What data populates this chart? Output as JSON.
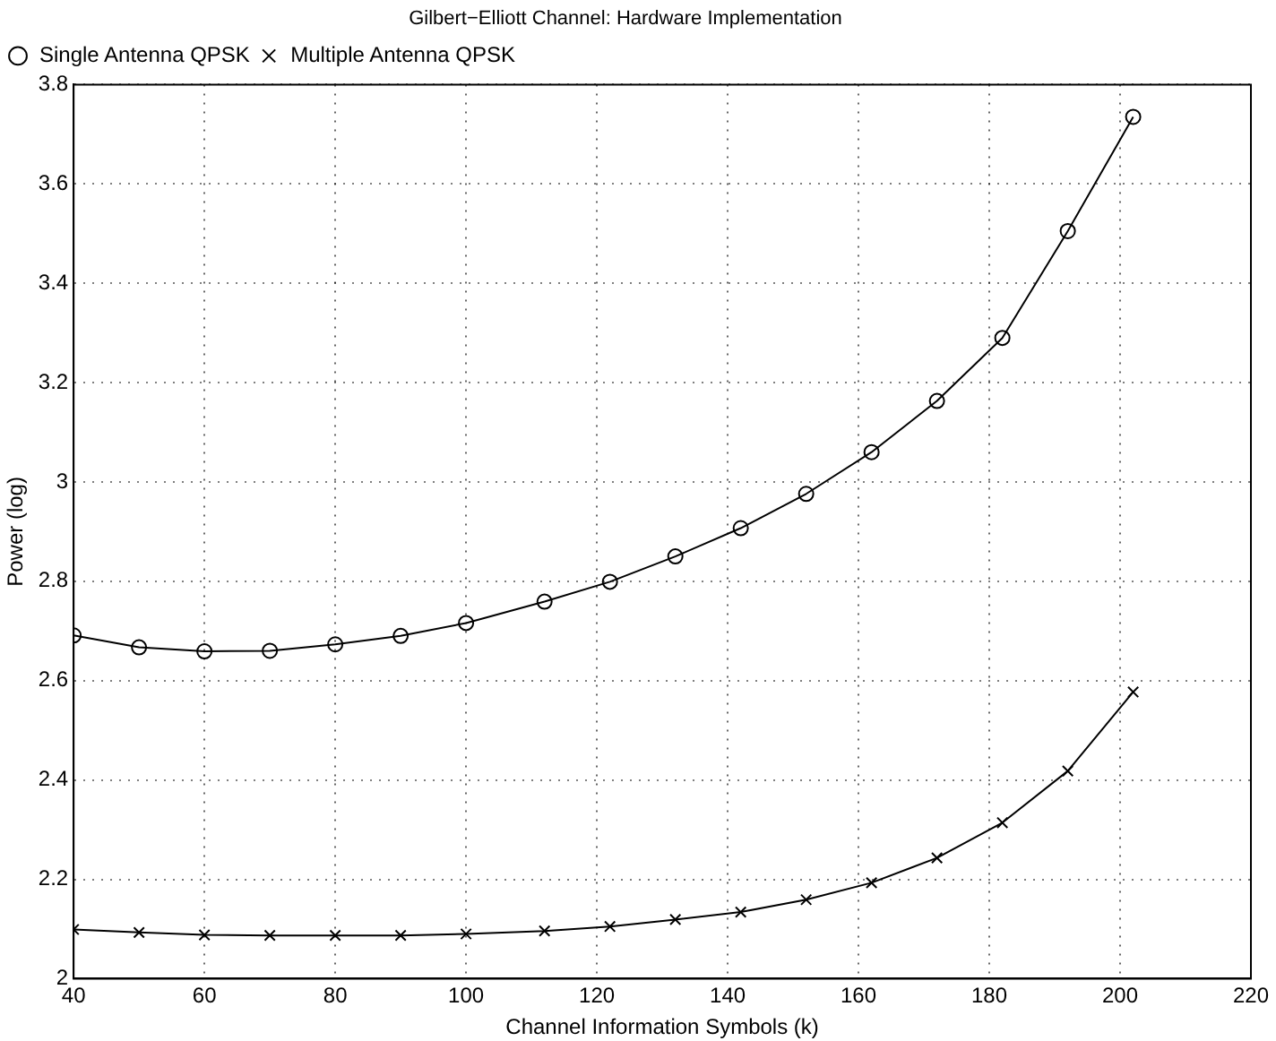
{
  "chart_data": {
    "type": "line",
    "title": "Gilbert−Elliott Channel: Hardware Implementation",
    "xlabel": "Channel Information Symbols (k)",
    "ylabel": "Power (log)",
    "x": [
      40,
      50,
      60,
      70,
      80,
      90,
      100,
      112,
      122,
      132,
      142,
      152,
      162,
      172,
      182,
      192,
      202
    ],
    "series": [
      {
        "name": "Single Antenna QPSK",
        "color": "#000000",
        "marker": "circle",
        "values": [
          2.691,
          2.667,
          2.659,
          2.66,
          2.673,
          2.69,
          2.716,
          2.759,
          2.799,
          2.85,
          2.907,
          2.976,
          3.06,
          3.163,
          3.29,
          3.505,
          3.735
        ]
      },
      {
        "name": "Multiple Antenna QPSK",
        "color": "#000000",
        "marker": "cross",
        "values": [
          2.099,
          2.093,
          2.088,
          2.087,
          2.087,
          2.087,
          2.09,
          2.096,
          2.105,
          2.119,
          2.134,
          2.159,
          2.193,
          2.243,
          2.314,
          2.418,
          2.577
        ]
      }
    ],
    "xlim": [
      40,
      220
    ],
    "xticks": [
      40,
      60,
      80,
      100,
      120,
      140,
      160,
      180,
      200,
      220
    ],
    "ylim": [
      2,
      3.8
    ],
    "yticks": [
      2,
      2.2,
      2.4,
      2.6,
      2.8,
      3,
      3.2,
      3.4,
      3.6,
      3.8
    ],
    "grid": true,
    "legend": "top left",
    "line_style": "solid"
  }
}
